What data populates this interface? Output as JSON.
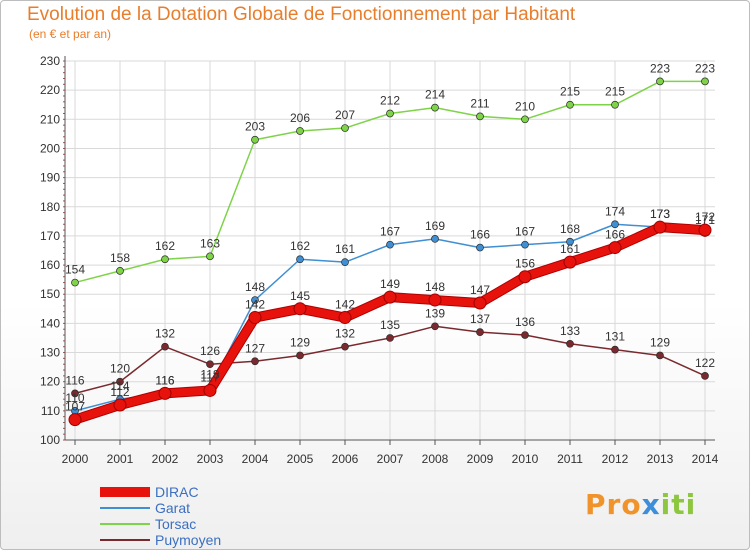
{
  "title": "Evolution de la Dotation Globale de Fonctionnement par Habitant",
  "subtitle": "(en € et par an)",
  "logo": "Proxiti",
  "chart_data": {
    "type": "line",
    "title": "Evolution de la Dotation Globale de Fonctionnement par Habitant",
    "subtitle": "(en € et par an)",
    "xlabel": "",
    "ylabel": "",
    "x": [
      2000,
      2001,
      2002,
      2003,
      2004,
      2005,
      2006,
      2007,
      2008,
      2009,
      2010,
      2011,
      2012,
      2013,
      2014
    ],
    "ylim": [
      100,
      230
    ],
    "yticks": [
      100,
      110,
      120,
      130,
      140,
      150,
      160,
      170,
      180,
      190,
      200,
      210,
      220,
      230
    ],
    "grid": true,
    "legend_position": "bottom-left",
    "series": [
      {
        "name": "DIRAC",
        "color": "#e8120c",
        "values": [
          107,
          112,
          116,
          117,
          142,
          145,
          142,
          149,
          148,
          147,
          156,
          161,
          166,
          173,
          172
        ]
      },
      {
        "name": "Garat",
        "color": "#3f8fd2",
        "values": [
          110,
          114,
          116,
          118,
          148,
          162,
          161,
          167,
          169,
          166,
          167,
          168,
          174,
          173,
          171
        ]
      },
      {
        "name": "Torsac",
        "color": "#7ed348",
        "values": [
          154,
          158,
          162,
          163,
          203,
          206,
          207,
          212,
          214,
          211,
          210,
          215,
          215,
          223,
          223
        ]
      },
      {
        "name": "Puymoyen",
        "color": "#7a2a2e",
        "values": [
          116,
          120,
          132,
          126,
          127,
          129,
          132,
          135,
          139,
          137,
          136,
          133,
          131,
          129,
          122
        ]
      }
    ]
  }
}
